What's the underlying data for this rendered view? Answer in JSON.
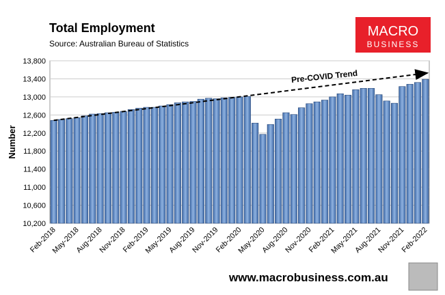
{
  "chart_data": {
    "type": "bar",
    "title": "Total Employment",
    "subtitle": "Source: Australian Bureau of Statistics",
    "y_label": "Number",
    "logo": [
      "MACRO",
      "BUSINESS"
    ],
    "footer": "www.macrobusiness.com.au",
    "categories": [
      "Feb-2018",
      null,
      null,
      "May-2018",
      null,
      null,
      "Aug-2018",
      null,
      null,
      "Nov-2018",
      null,
      null,
      "Feb-2019",
      null,
      null,
      "May-2019",
      null,
      null,
      "Aug-2019",
      null,
      null,
      "Nov-2019",
      null,
      null,
      "Feb-2020",
      null,
      null,
      "May-2020",
      null,
      null,
      "Aug-2020",
      null,
      null,
      "Nov-2020",
      null,
      null,
      "Feb-2021",
      null,
      null,
      "May-2021",
      null,
      null,
      "Aug-2021",
      null,
      null,
      "Nov-2021",
      null,
      null,
      "Feb-2022"
    ],
    "values": [
      12480,
      12500,
      12520,
      12540,
      12580,
      12620,
      12630,
      12650,
      12660,
      12680,
      12720,
      12750,
      12770,
      12770,
      12800,
      12830,
      12870,
      12890,
      12900,
      12950,
      12970,
      12960,
      12980,
      12990,
      13000,
      13010,
      12420,
      12170,
      12390,
      12510,
      12650,
      12610,
      12760,
      12850,
      12890,
      12930,
      13000,
      13070,
      13040,
      13160,
      13190,
      13190,
      13050,
      12910,
      12860,
      13230,
      13280,
      13320,
      13390
    ],
    "color": "#5b87c5",
    "trend": {
      "label": "Pre-COVID Trend",
      "start": 12480,
      "end": 13530
    },
    "ylim": [
      10200,
      13800
    ],
    "yticks": [
      {
        "value": 10200,
        "label": "10,200"
      },
      {
        "value": 10600,
        "label": "10,600"
      },
      {
        "value": 11000,
        "label": "11,000"
      },
      {
        "value": 11400,
        "label": "11,400"
      },
      {
        "value": 11800,
        "label": "11,800"
      },
      {
        "value": 12200,
        "label": "12,200"
      },
      {
        "value": 12600,
        "label": "12,600"
      },
      {
        "value": 13000,
        "label": "13,000"
      },
      {
        "value": 13400,
        "label": "13,400"
      },
      {
        "value": 13800,
        "label": "13,800"
      }
    ],
    "grid": true
  }
}
